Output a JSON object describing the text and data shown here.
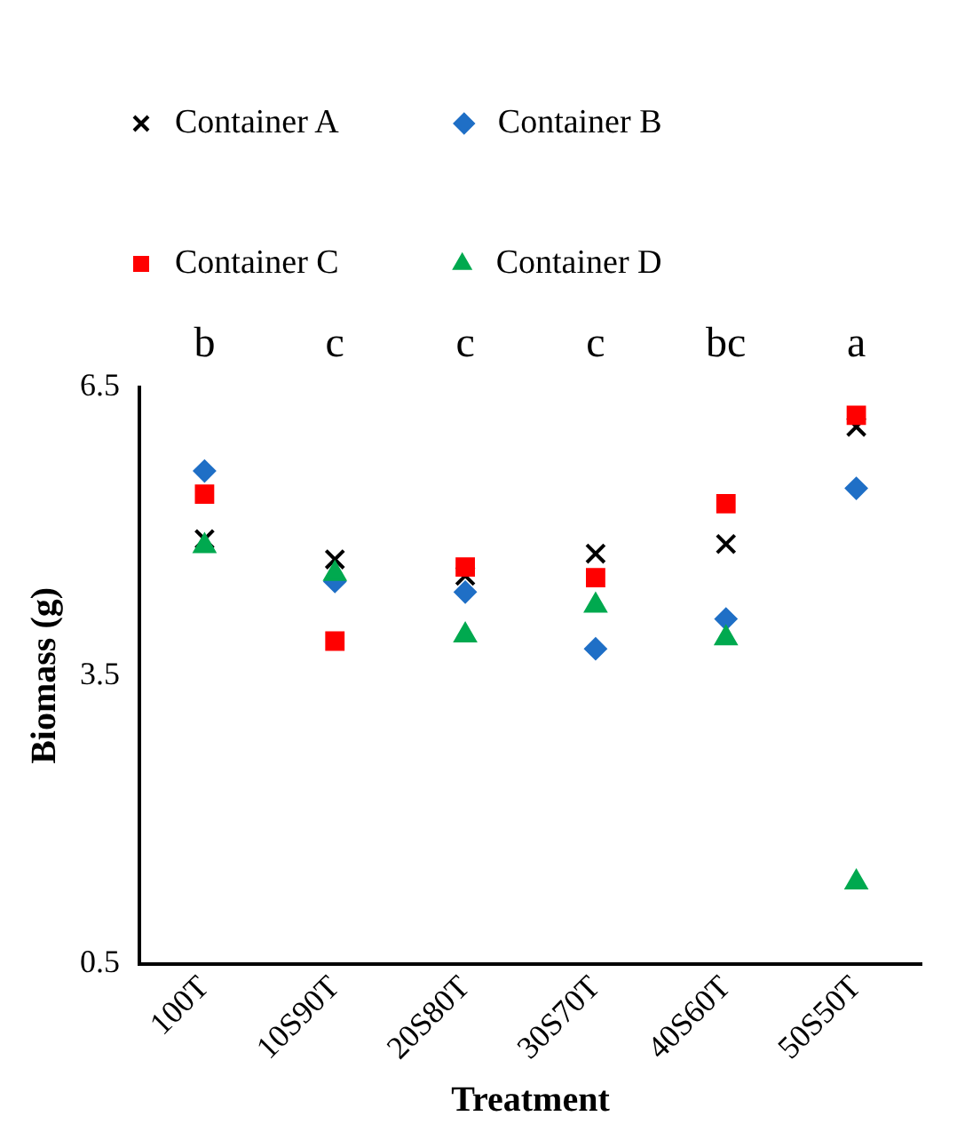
{
  "chart_data": {
    "type": "scatter",
    "xlabel": "Treatment",
    "ylabel": "Biomass (g)",
    "categories": [
      "100T",
      "10S90T",
      "20S80T",
      "30S70T",
      "40S60T",
      "50S50T"
    ],
    "series": [
      {
        "name": "Container A",
        "color": "#000000",
        "marker": "cross",
        "values": [
          4.92,
          4.71,
          4.54,
          4.77,
          4.87,
          6.09
        ]
      },
      {
        "name": "Container B",
        "color": "#1f6fc6",
        "marker": "diamond",
        "values": [
          5.63,
          4.48,
          4.37,
          3.78,
          4.09,
          5.45
        ]
      },
      {
        "name": "Container C",
        "color": "#ff0000",
        "marker": "square",
        "values": [
          5.39,
          3.86,
          4.63,
          4.52,
          5.29,
          6.21
        ]
      },
      {
        "name": "Container D",
        "color": "#00a94f",
        "marker": "triangle",
        "values": [
          4.85,
          4.56,
          3.92,
          4.23,
          3.89,
          1.35
        ]
      }
    ],
    "ylim": [
      0.5,
      6.5
    ],
    "yticks": [
      0.5,
      3.5,
      6.5
    ],
    "grid": false,
    "legend": "top",
    "annotations": [
      "b",
      "c",
      "c",
      "c",
      "bc",
      "a"
    ]
  }
}
